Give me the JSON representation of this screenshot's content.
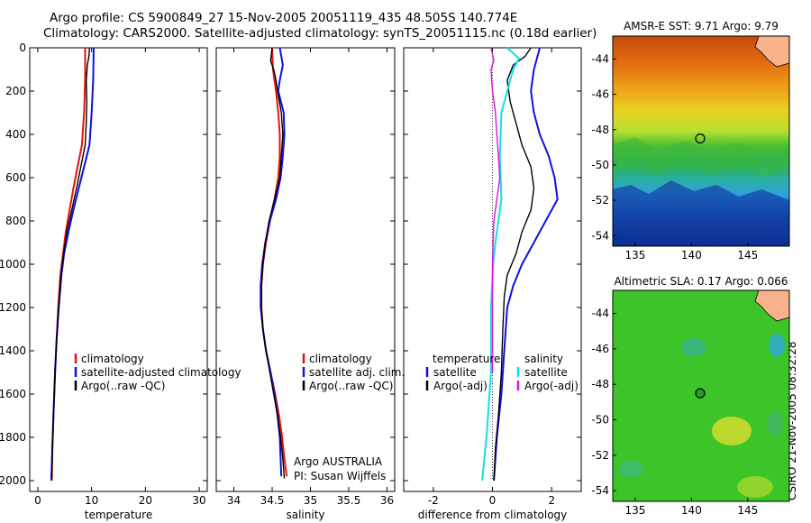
{
  "header": {
    "title_line1": "Argo profile: CS 5900849_27 15-Nov-2005 20051119_435 48.505S 140.774E",
    "title_line2": "Climatology: CARS2000. Satellite-adjusted climatology: synTS_20051115.nc (0.18d earlier)"
  },
  "side_label": "CSIRO 21-Nov-2005 08:32:28",
  "colors": {
    "climatology": "#e8120c",
    "satellite": "#1010e0",
    "argo": "#000000",
    "sat_salinity": "#10e0e8",
    "argo_salinity_adj": "#e010e0"
  },
  "chart_data": [
    {
      "id": "temperature",
      "type": "line",
      "xlabel": "temperature",
      "xlim": [
        -1.5,
        31.5
      ],
      "ylim": [
        2050,
        0
      ],
      "xticks": [
        0,
        10,
        20,
        30
      ],
      "yticks": [
        0,
        200,
        400,
        600,
        800,
        1000,
        1200,
        1400,
        1600,
        1800,
        2000
      ],
      "legend": {
        "location": "lower-right",
        "entries": [
          "climatology",
          "satellite-adjusted climatology",
          "Argo(..raw -QC)"
        ]
      },
      "series": [
        {
          "name": "climatology",
          "color_key": "climatology",
          "width": 2,
          "points": [
            [
              8.8,
              0
            ],
            [
              8.8,
              150
            ],
            [
              8.6,
              300
            ],
            [
              8.2,
              450
            ],
            [
              7.4,
              550
            ],
            [
              6.6,
              650
            ],
            [
              5.9,
              750
            ],
            [
              5.2,
              850
            ],
            [
              4.7,
              950
            ],
            [
              4.2,
              1050
            ],
            [
              3.8,
              1200
            ],
            [
              3.5,
              1350
            ],
            [
              3.2,
              1500
            ],
            [
              2.9,
              1700
            ],
            [
              2.7,
              1850
            ],
            [
              2.6,
              2000
            ]
          ]
        },
        {
          "name": "satellite-adjusted climatology",
          "color_key": "satellite",
          "width": 2,
          "points": [
            [
              10.4,
              0
            ],
            [
              10.3,
              150
            ],
            [
              10.0,
              300
            ],
            [
              9.6,
              450
            ],
            [
              8.6,
              550
            ],
            [
              7.6,
              650
            ],
            [
              6.6,
              750
            ],
            [
              5.7,
              850
            ],
            [
              4.9,
              950
            ],
            [
              4.4,
              1050
            ],
            [
              3.9,
              1200
            ],
            [
              3.5,
              1350
            ],
            [
              3.2,
              1500
            ],
            [
              2.9,
              1700
            ],
            [
              2.7,
              1850
            ],
            [
              2.5,
              2000
            ]
          ]
        },
        {
          "name": "Argo(..raw -QC)",
          "color_key": "argo",
          "width": 1.4,
          "points": [
            [
              9.6,
              0
            ],
            [
              9.5,
              40
            ],
            [
              9.2,
              80
            ],
            [
              9.0,
              150
            ],
            [
              9.1,
              250
            ],
            [
              9.0,
              350
            ],
            [
              8.8,
              450
            ],
            [
              8.0,
              550
            ],
            [
              7.2,
              650
            ],
            [
              6.3,
              750
            ],
            [
              5.4,
              850
            ],
            [
              4.8,
              950
            ],
            [
              4.3,
              1050
            ],
            [
              3.9,
              1200
            ],
            [
              3.5,
              1350
            ],
            [
              3.2,
              1500
            ],
            [
              2.9,
              1700
            ],
            [
              2.7,
              1850
            ],
            [
              2.6,
              1990
            ]
          ]
        }
      ]
    },
    {
      "id": "salinity",
      "type": "line",
      "xlabel": "salinity",
      "xlim": [
        33.77,
        36.1
      ],
      "ylim": [
        2050,
        0
      ],
      "xticks": [
        34,
        34.5,
        35,
        35.5,
        36
      ],
      "yticks": [
        0,
        200,
        400,
        600,
        800,
        1000,
        1200,
        1400,
        1600,
        1800,
        2000
      ],
      "legend": {
        "location": "lower-right",
        "entries": [
          "climatology",
          "satellite adj. clim.",
          "Argo(..raw -QC)"
        ]
      },
      "annotation_lines": [
        "Argo AUSTRALIA",
        "PI: Susan Wijffels"
      ],
      "series": [
        {
          "name": "climatology",
          "color_key": "climatology",
          "width": 2,
          "points": [
            [
              34.5,
              0
            ],
            [
              34.51,
              100
            ],
            [
              34.55,
              200
            ],
            [
              34.58,
              300
            ],
            [
              34.6,
              400
            ],
            [
              34.6,
              500
            ],
            [
              34.58,
              600
            ],
            [
              34.53,
              700
            ],
            [
              34.47,
              800
            ],
            [
              34.42,
              900
            ],
            [
              34.38,
              1000
            ],
            [
              34.36,
              1100
            ],
            [
              34.36,
              1200
            ],
            [
              34.38,
              1300
            ],
            [
              34.42,
              1400
            ],
            [
              34.48,
              1500
            ],
            [
              34.54,
              1600
            ],
            [
              34.59,
              1700
            ],
            [
              34.63,
              1800
            ],
            [
              34.66,
              1900
            ],
            [
              34.69,
              1980
            ]
          ]
        },
        {
          "name": "satellite adj. clim.",
          "color_key": "satellite",
          "width": 2,
          "points": [
            [
              34.6,
              0
            ],
            [
              34.62,
              40
            ],
            [
              34.64,
              80
            ],
            [
              34.6,
              150
            ],
            [
              34.58,
              200
            ],
            [
              34.65,
              300
            ],
            [
              34.66,
              400
            ],
            [
              34.64,
              500
            ],
            [
              34.61,
              600
            ],
            [
              34.55,
              700
            ],
            [
              34.47,
              800
            ],
            [
              34.41,
              900
            ],
            [
              34.37,
              1000
            ],
            [
              34.35,
              1100
            ],
            [
              34.35,
              1200
            ],
            [
              34.38,
              1300
            ],
            [
              34.42,
              1400
            ],
            [
              34.48,
              1500
            ],
            [
              34.53,
              1600
            ],
            [
              34.57,
              1700
            ],
            [
              34.6,
              1800
            ],
            [
              34.61,
              1900
            ],
            [
              34.62,
              1980
            ]
          ]
        },
        {
          "name": "Argo(..raw -QC)",
          "color_key": "argo",
          "width": 1.4,
          "points": [
            [
              34.5,
              0
            ],
            [
              34.48,
              60
            ],
            [
              34.52,
              100
            ],
            [
              34.55,
              150
            ],
            [
              34.57,
              200
            ],
            [
              34.62,
              300
            ],
            [
              34.64,
              400
            ],
            [
              34.62,
              500
            ],
            [
              34.6,
              600
            ],
            [
              34.53,
              700
            ],
            [
              34.46,
              800
            ],
            [
              34.41,
              900
            ],
            [
              34.38,
              1000
            ],
            [
              34.36,
              1100
            ],
            [
              34.36,
              1200
            ],
            [
              34.38,
              1300
            ],
            [
              34.42,
              1400
            ],
            [
              34.47,
              1500
            ],
            [
              34.52,
              1600
            ],
            [
              34.57,
              1700
            ],
            [
              34.61,
              1800
            ],
            [
              34.64,
              1900
            ],
            [
              34.66,
              1990
            ]
          ]
        }
      ]
    },
    {
      "id": "difference",
      "type": "line",
      "xlabel": "difference from climatology",
      "xlim": [
        -3.0,
        3.0
      ],
      "ylim": [
        2050,
        0
      ],
      "xticks": [
        -2,
        0,
        2
      ],
      "yticks": [
        0,
        200,
        400,
        600,
        800,
        1000,
        1200,
        1400,
        1600,
        1800,
        2000
      ],
      "legend": {
        "location": "lower-center",
        "temperature_header": "temperature",
        "salinity_header": "salinity",
        "temperature_entries": [
          "satellite",
          "Argo(-adj)"
        ],
        "salinity_entries": [
          "satellite",
          "Argo(-adj)"
        ]
      },
      "series": [
        {
          "name": "temperature satellite",
          "color_key": "satellite",
          "width": 2,
          "points": [
            [
              1.6,
              0
            ],
            [
              1.5,
              50
            ],
            [
              1.4,
              100
            ],
            [
              1.3,
              200
            ],
            [
              1.4,
              300
            ],
            [
              1.6,
              400
            ],
            [
              1.9,
              500
            ],
            [
              2.1,
              600
            ],
            [
              2.2,
              700
            ],
            [
              1.8,
              800
            ],
            [
              1.4,
              900
            ],
            [
              1.0,
              1000
            ],
            [
              0.7,
              1100
            ],
            [
              0.5,
              1200
            ],
            [
              0.4,
              1400
            ],
            [
              0.3,
              1600
            ],
            [
              0.15,
              1800
            ],
            [
              0.05,
              2000
            ]
          ]
        },
        {
          "name": "temperature Argo(-adj)",
          "color_key": "argo",
          "width": 1.4,
          "points": [
            [
              1.3,
              0
            ],
            [
              1.1,
              40
            ],
            [
              0.7,
              80
            ],
            [
              0.5,
              150
            ],
            [
              0.6,
              250
            ],
            [
              0.8,
              350
            ],
            [
              1.0,
              450
            ],
            [
              1.3,
              550
            ],
            [
              1.4,
              650
            ],
            [
              1.3,
              750
            ],
            [
              1.0,
              850
            ],
            [
              0.8,
              950
            ],
            [
              0.5,
              1050
            ],
            [
              0.4,
              1150
            ],
            [
              0.35,
              1300
            ],
            [
              0.3,
              1500
            ],
            [
              0.2,
              1700
            ],
            [
              0.1,
              1850
            ],
            [
              0.05,
              2000
            ]
          ]
        },
        {
          "name": "salinity satellite",
          "color_key": "sat_salinity",
          "width": 2,
          "points": [
            [
              0.5,
              0
            ],
            [
              0.9,
              50
            ],
            [
              0.7,
              100
            ],
            [
              0.5,
              200
            ],
            [
              0.3,
              300
            ],
            [
              0.25,
              500
            ],
            [
              0.3,
              700
            ],
            [
              0.2,
              800
            ],
            [
              0.1,
              900
            ],
            [
              0.02,
              1000
            ],
            [
              -0.05,
              1200
            ],
            [
              -0.05,
              1400
            ],
            [
              -0.05,
              1500
            ],
            [
              -0.1,
              1600
            ],
            [
              -0.2,
              1800
            ],
            [
              -0.35,
              2000
            ]
          ]
        },
        {
          "name": "salinity Argo(-adj)",
          "color_key": "argo_salinity_adj",
          "width": 1.4,
          "points": [
            [
              -0.05,
              0
            ],
            [
              0.05,
              60
            ],
            [
              -0.05,
              100
            ],
            [
              0.0,
              200
            ],
            [
              0.1,
              300
            ],
            [
              0.15,
              400
            ],
            [
              0.2,
              500
            ],
            [
              0.25,
              600
            ],
            [
              0.15,
              700
            ],
            [
              0.05,
              800
            ],
            [
              0.02,
              900
            ],
            [
              0.0,
              1000
            ],
            [
              0.0,
              1200
            ],
            [
              0.0,
              1500
            ]
          ]
        }
      ]
    },
    {
      "id": "sst_map",
      "type": "heatmap",
      "title": "AMSR-E SST: 9.71 Argo: 9.79",
      "xlim": [
        133,
        148.7
      ],
      "ylim": [
        -54.6,
        -42.7
      ],
      "xticks": [
        135,
        140,
        145
      ],
      "yticks": [
        -44,
        -46,
        -48,
        -50,
        -52,
        -54
      ],
      "marker": {
        "lon": 140.77,
        "lat": -48.5
      }
    },
    {
      "id": "sla_map",
      "type": "heatmap",
      "title": "Altimetric SLA: 0.17 Argo: 0.066",
      "xlim": [
        133,
        148.7
      ],
      "ylim": [
        -54.6,
        -42.7
      ],
      "xticks": [
        135,
        140,
        145
      ],
      "yticks": [
        -44,
        -46,
        -48,
        -50,
        -52,
        -54
      ],
      "marker": {
        "lon": 140.77,
        "lat": -48.5
      }
    }
  ]
}
